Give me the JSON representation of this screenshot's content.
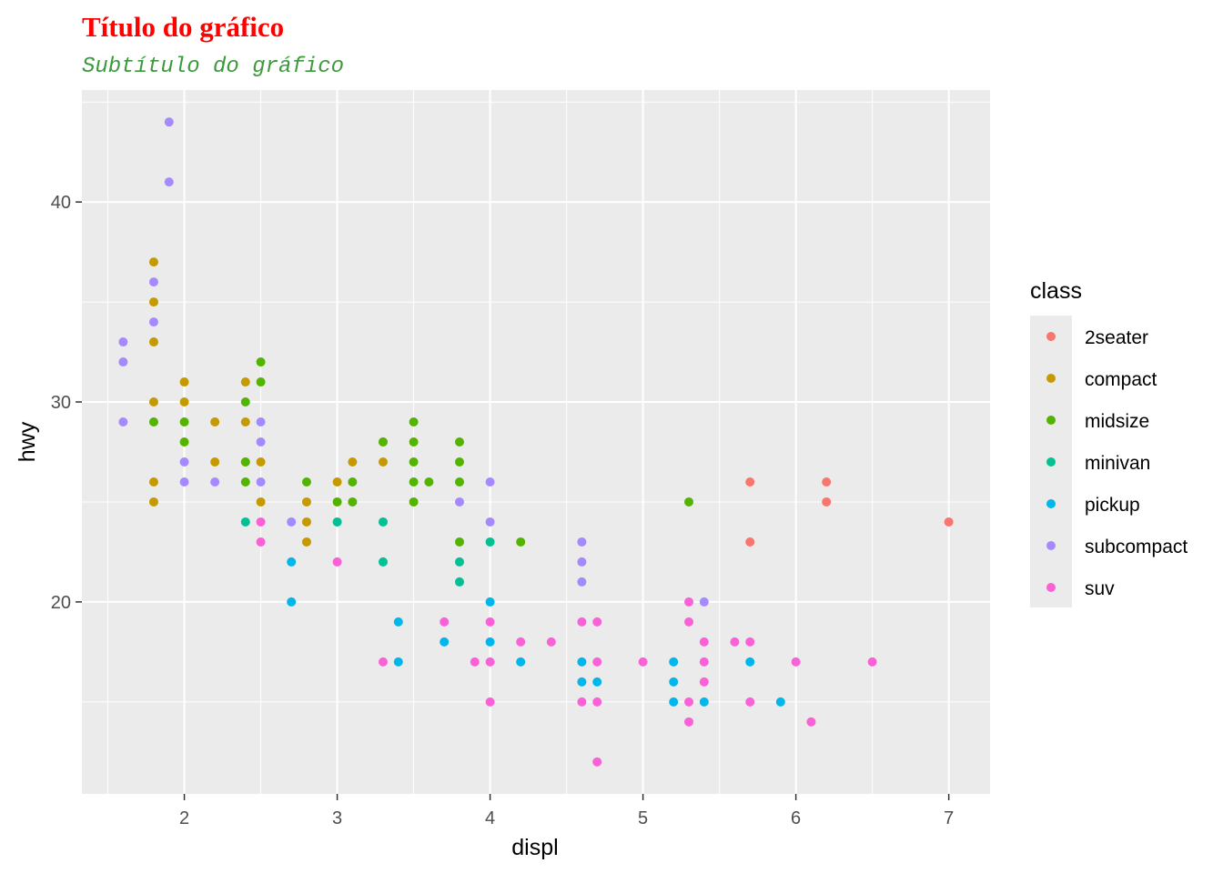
{
  "chart_data": {
    "type": "scatter",
    "title": "Título do gráfico",
    "subtitle": "Subtítulo do gráfico",
    "xlabel": "displ",
    "ylabel": "hwy",
    "xlim": [
      1.33,
      7.27
    ],
    "ylim": [
      10.4,
      45.6
    ],
    "x_ticks": [
      "2",
      "3",
      "4",
      "5",
      "6",
      "7"
    ],
    "y_ticks": [
      "20",
      "30",
      "40"
    ],
    "grid": true,
    "legend": {
      "title": "class",
      "position": "right"
    },
    "series": [
      {
        "name": "2seater",
        "color": "#F8766D",
        "points": [
          [
            5.7,
            26
          ],
          [
            5.7,
            23
          ],
          [
            6.2,
            26
          ],
          [
            6.2,
            25
          ],
          [
            7.0,
            24
          ]
        ]
      },
      {
        "name": "compact",
        "color": "#C49A00",
        "points": [
          [
            1.8,
            37
          ],
          [
            1.8,
            35
          ],
          [
            1.8,
            33
          ],
          [
            1.8,
            30
          ],
          [
            1.8,
            26
          ],
          [
            1.8,
            25
          ],
          [
            2.0,
            31
          ],
          [
            2.0,
            30
          ],
          [
            2.2,
            29
          ],
          [
            2.2,
            27
          ],
          [
            2.4,
            31
          ],
          [
            2.4,
            29
          ],
          [
            2.4,
            27
          ],
          [
            2.5,
            27
          ],
          [
            2.5,
            25
          ],
          [
            2.8,
            25
          ],
          [
            2.8,
            24
          ],
          [
            2.8,
            23
          ],
          [
            3.0,
            26
          ],
          [
            3.1,
            27
          ],
          [
            3.3,
            28
          ],
          [
            3.3,
            27
          ]
        ]
      },
      {
        "name": "midsize",
        "color": "#53B400",
        "points": [
          [
            1.8,
            29
          ],
          [
            2.0,
            29
          ],
          [
            2.0,
            28
          ],
          [
            2.4,
            30
          ],
          [
            2.4,
            27
          ],
          [
            2.4,
            26
          ],
          [
            2.5,
            32
          ],
          [
            2.5,
            31
          ],
          [
            2.8,
            26
          ],
          [
            3.0,
            25
          ],
          [
            3.1,
            26
          ],
          [
            3.1,
            25
          ],
          [
            3.3,
            28
          ],
          [
            3.5,
            29
          ],
          [
            3.5,
            28
          ],
          [
            3.5,
            27
          ],
          [
            3.5,
            26
          ],
          [
            3.5,
            25
          ],
          [
            3.6,
            26
          ],
          [
            3.8,
            28
          ],
          [
            3.8,
            27
          ],
          [
            3.8,
            26
          ],
          [
            3.8,
            23
          ],
          [
            4.2,
            23
          ],
          [
            5.3,
            25
          ]
        ]
      },
      {
        "name": "minivan",
        "color": "#00C094",
        "points": [
          [
            2.4,
            24
          ],
          [
            3.0,
            24
          ],
          [
            3.3,
            24
          ],
          [
            3.3,
            22
          ],
          [
            3.8,
            22
          ],
          [
            3.8,
            21
          ],
          [
            4.0,
            23
          ]
        ]
      },
      {
        "name": "pickup",
        "color": "#00B6EB",
        "points": [
          [
            2.7,
            22
          ],
          [
            2.7,
            20
          ],
          [
            3.4,
            19
          ],
          [
            3.4,
            17
          ],
          [
            3.7,
            18
          ],
          [
            4.0,
            20
          ],
          [
            4.0,
            18
          ],
          [
            4.2,
            17
          ],
          [
            4.6,
            17
          ],
          [
            4.6,
            16
          ],
          [
            4.7,
            16
          ],
          [
            5.2,
            17
          ],
          [
            5.2,
            16
          ],
          [
            5.2,
            15
          ],
          [
            5.4,
            15
          ],
          [
            5.7,
            17
          ],
          [
            5.9,
            15
          ]
        ]
      },
      {
        "name": "subcompact",
        "color": "#A58AFF",
        "points": [
          [
            1.6,
            33
          ],
          [
            1.6,
            32
          ],
          [
            1.6,
            29
          ],
          [
            1.8,
            36
          ],
          [
            1.8,
            34
          ],
          [
            1.9,
            44
          ],
          [
            1.9,
            41
          ],
          [
            2.0,
            27
          ],
          [
            2.0,
            26
          ],
          [
            2.2,
            26
          ],
          [
            2.5,
            29
          ],
          [
            2.5,
            28
          ],
          [
            2.5,
            26
          ],
          [
            2.7,
            24
          ],
          [
            3.8,
            25
          ],
          [
            4.0,
            26
          ],
          [
            4.0,
            24
          ],
          [
            4.6,
            23
          ],
          [
            4.6,
            22
          ],
          [
            4.6,
            21
          ],
          [
            5.4,
            20
          ]
        ]
      },
      {
        "name": "suv",
        "color": "#FB61D7",
        "points": [
          [
            2.5,
            24
          ],
          [
            2.5,
            23
          ],
          [
            3.0,
            22
          ],
          [
            3.3,
            17
          ],
          [
            3.7,
            19
          ],
          [
            3.9,
            17
          ],
          [
            4.0,
            19
          ],
          [
            4.0,
            17
          ],
          [
            4.0,
            15
          ],
          [
            4.2,
            18
          ],
          [
            4.4,
            18
          ],
          [
            4.6,
            19
          ],
          [
            4.6,
            15
          ],
          [
            4.7,
            19
          ],
          [
            4.7,
            17
          ],
          [
            4.7,
            15
          ],
          [
            4.7,
            12
          ],
          [
            5.0,
            17
          ],
          [
            5.3,
            20
          ],
          [
            5.3,
            19
          ],
          [
            5.3,
            15
          ],
          [
            5.3,
            14
          ],
          [
            5.4,
            18
          ],
          [
            5.4,
            17
          ],
          [
            5.4,
            16
          ],
          [
            5.6,
            18
          ],
          [
            5.7,
            18
          ],
          [
            5.7,
            15
          ],
          [
            6.0,
            17
          ],
          [
            6.1,
            14
          ],
          [
            6.5,
            17
          ]
        ]
      }
    ]
  }
}
